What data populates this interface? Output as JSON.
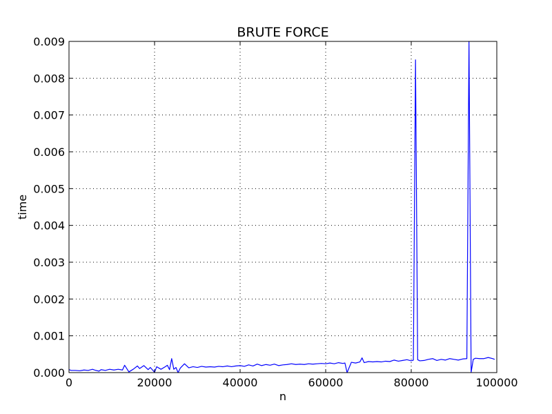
{
  "chart_data": {
    "type": "line",
    "title": "BRUTE FORCE",
    "xlabel": "n",
    "ylabel": "time",
    "xlim": [
      0,
      100000
    ],
    "ylim": [
      0,
      0.009
    ],
    "x_ticks": [
      0,
      20000,
      40000,
      60000,
      80000,
      100000
    ],
    "x_tick_labels": [
      "0",
      "20000",
      "40000",
      "60000",
      "80000",
      "100000"
    ],
    "y_ticks": [
      0,
      0.001,
      0.002,
      0.003,
      0.004,
      0.005,
      0.006,
      0.007,
      0.008,
      0.009
    ],
    "y_tick_labels": [
      "0.000",
      "0.001",
      "0.002",
      "0.003",
      "0.004",
      "0.005",
      "0.006",
      "0.007",
      "0.008",
      "0.009"
    ],
    "grid": true,
    "colors": {
      "series": "#0000ff",
      "axes": "#000000",
      "background": "#ffffff"
    },
    "series": [
      {
        "x": [
          0,
          500,
          1500,
          2500,
          3500,
          4500,
          5500,
          6000,
          7000,
          7500,
          8500,
          9500,
          10500,
          11500,
          12500,
          13000,
          14000,
          15000,
          16000,
          16500,
          17500,
          18500,
          19000,
          20000,
          20500,
          21500,
          22500,
          23000,
          23500,
          24000,
          24500,
          25000,
          25500,
          26000,
          27000,
          28000,
          29000,
          30000,
          31000,
          32000,
          33000,
          34000,
          35000,
          36000,
          37000,
          38000,
          39000,
          40000,
          41000,
          42000,
          43000,
          44000,
          45000,
          46000,
          47000,
          48000,
          49000,
          50000,
          51000,
          52000,
          53000,
          54000,
          55000,
          56000,
          57000,
          58000,
          59000,
          60000,
          61000,
          62000,
          63000,
          64000,
          64500,
          65000,
          66000,
          67000,
          68000,
          68500,
          69000,
          70000,
          71000,
          72000,
          73000,
          74000,
          75000,
          76000,
          77000,
          78000,
          79000,
          80000,
          80500,
          81000,
          81500,
          82000,
          83000,
          84000,
          85000,
          86000,
          87000,
          88000,
          89000,
          90000,
          91000,
          92000,
          93000,
          93500,
          94000,
          94500,
          95000,
          96000,
          97000,
          98000,
          99000,
          99500
        ],
        "y": [
          8e-05,
          6e-05,
          6e-05,
          5e-05,
          7e-05,
          6e-05,
          9e-05,
          7e-05,
          4e-05,
          8e-05,
          6e-05,
          9e-05,
          7e-05,
          9e-05,
          7e-05,
          0.0002,
          2e-05,
          9e-05,
          0.00018,
          0.00011,
          0.00019,
          8e-05,
          0.00014,
          1e-05,
          0.00016,
          9e-05,
          0.00016,
          0.0002,
          8e-05,
          0.00038,
          9e-05,
          0.00014,
          0.0,
          0.00012,
          0.00024,
          0.00013,
          0.00016,
          0.00014,
          0.00017,
          0.00015,
          0.00016,
          0.00015,
          0.00017,
          0.00016,
          0.00018,
          0.00016,
          0.00018,
          0.00019,
          0.00017,
          0.00021,
          0.00018,
          0.00023,
          0.00019,
          0.00022,
          0.0002,
          0.00023,
          0.00019,
          0.00021,
          0.00022,
          0.00024,
          0.00022,
          0.00023,
          0.00022,
          0.00024,
          0.00023,
          0.00024,
          0.00025,
          0.00024,
          0.00026,
          0.00024,
          0.00027,
          0.00025,
          0.00026,
          0.0,
          0.00028,
          0.00026,
          0.00029,
          0.0004,
          0.00027,
          0.0003,
          0.00029,
          0.0003,
          0.00029,
          0.00031,
          0.0003,
          0.00034,
          0.00031,
          0.00033,
          0.00035,
          0.00032,
          0.00034,
          0.0085,
          0.00035,
          0.00032,
          0.00033,
          0.00036,
          0.00038,
          0.00033,
          0.00036,
          0.00034,
          0.00038,
          0.00036,
          0.00034,
          0.00037,
          0.00038,
          0.0153,
          1e-05,
          0.00036,
          0.00039,
          0.00038,
          0.00038,
          0.00041,
          0.00038,
          0.00036
        ],
        "color": "#0000ff"
      }
    ]
  }
}
